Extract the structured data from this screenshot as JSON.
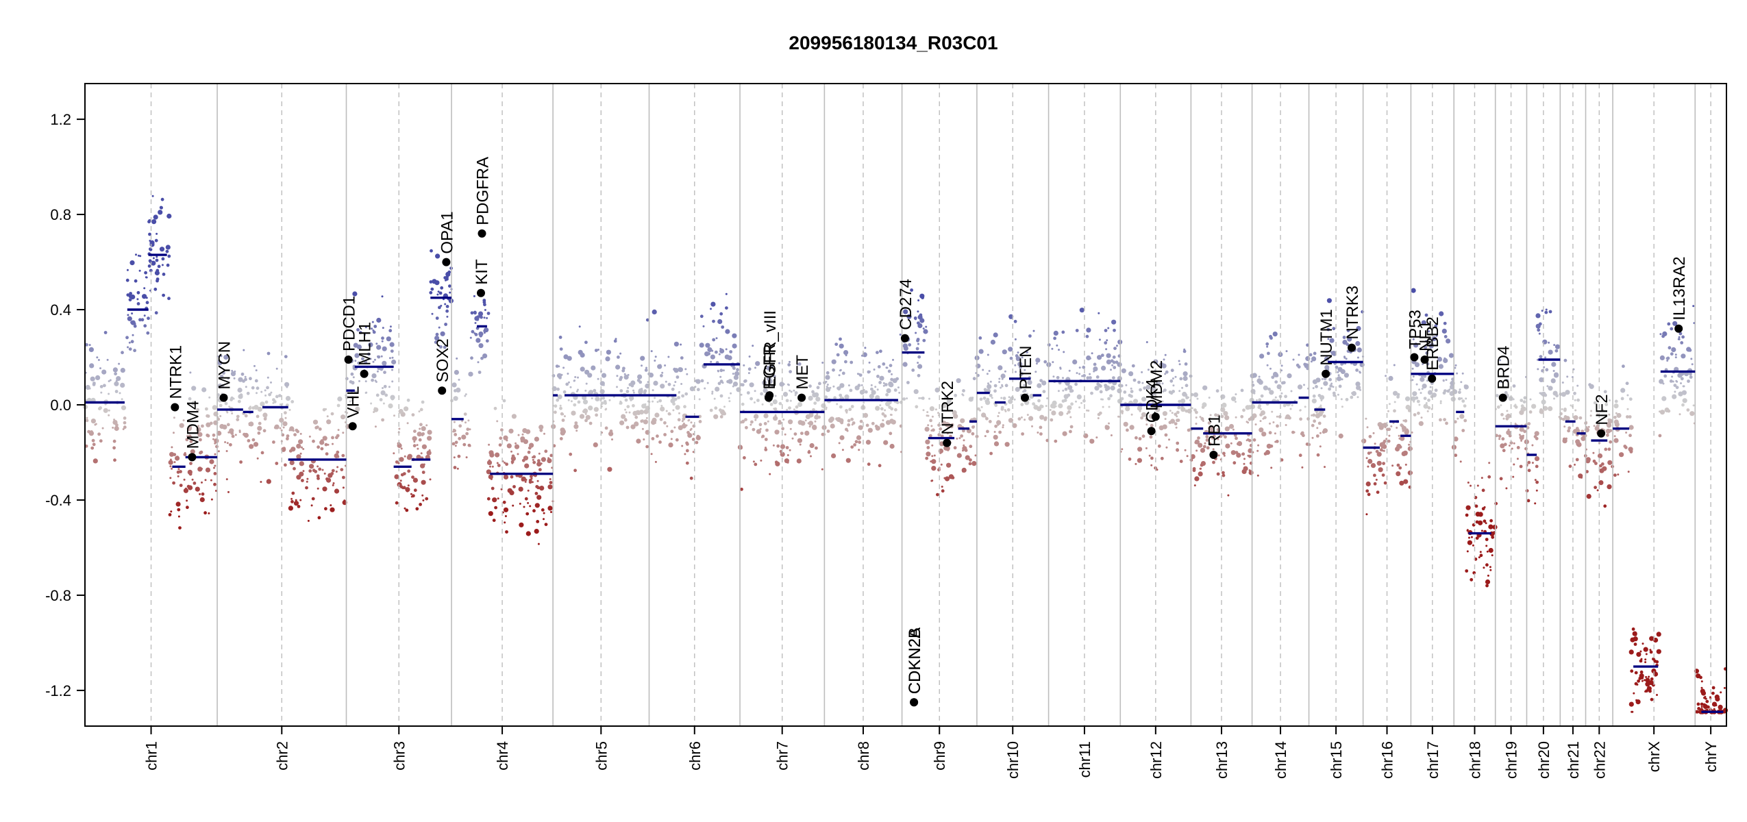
{
  "chart_data": {
    "type": "scatter",
    "title": "209956180134_R03C01",
    "xlabel": "",
    "ylabel": "",
    "ylim": [
      -1.35,
      1.35
    ],
    "y_ticks": [
      -1.2,
      -0.8,
      -0.4,
      0.0,
      0.4,
      0.8,
      1.2
    ],
    "y_tick_labels": [
      "-1.2",
      "-0.8",
      "-0.4",
      "0.0",
      "0.4",
      "0.8",
      "1.2"
    ],
    "colors": {
      "gain": "#4a4ea8",
      "loss": "#9b1b1b",
      "neutral": "#cfcfcf",
      "segment": "#000080",
      "gene_dot": "#000000",
      "grid": "#bdbdbd"
    },
    "chromosomes": [
      {
        "name": "chr1",
        "weight": 249
      },
      {
        "name": "chr2",
        "weight": 243
      },
      {
        "name": "chr3",
        "weight": 198
      },
      {
        "name": "chr4",
        "weight": 191
      },
      {
        "name": "chr5",
        "weight": 181
      },
      {
        "name": "chr6",
        "weight": 171
      },
      {
        "name": "chr7",
        "weight": 159
      },
      {
        "name": "chr8",
        "weight": 146
      },
      {
        "name": "chr9",
        "weight": 141
      },
      {
        "name": "chr10",
        "weight": 135
      },
      {
        "name": "chr11",
        "weight": 135
      },
      {
        "name": "chr12",
        "weight": 133
      },
      {
        "name": "chr13",
        "weight": 115
      },
      {
        "name": "chr14",
        "weight": 107
      },
      {
        "name": "chr15",
        "weight": 102
      },
      {
        "name": "chr16",
        "weight": 90
      },
      {
        "name": "chr17",
        "weight": 81
      },
      {
        "name": "chr18",
        "weight": 78
      },
      {
        "name": "chr19",
        "weight": 59
      },
      {
        "name": "chr20",
        "weight": 63
      },
      {
        "name": "chr21",
        "weight": 48
      },
      {
        "name": "chr22",
        "weight": 51
      },
      {
        "name": "chrX",
        "weight": 155
      },
      {
        "name": "chrY",
        "weight": 59
      }
    ],
    "segments": [
      {
        "chr": "chr1",
        "from": 0.0,
        "to": 0.3,
        "y": 0.01
      },
      {
        "chr": "chr1",
        "from": 0.32,
        "to": 0.48,
        "y": 0.4
      },
      {
        "chr": "chr1",
        "from": 0.48,
        "to": 0.62,
        "y": 0.63
      },
      {
        "chr": "chr1",
        "from": 0.66,
        "to": 0.76,
        "y": -0.26
      },
      {
        "chr": "chr1",
        "from": 0.76,
        "to": 1.0,
        "y": -0.22
      },
      {
        "chr": "chr2",
        "from": 0.0,
        "to": 0.2,
        "y": -0.02
      },
      {
        "chr": "chr2",
        "from": 0.2,
        "to": 0.28,
        "y": -0.03
      },
      {
        "chr": "chr2",
        "from": 0.35,
        "to": 0.55,
        "y": -0.01
      },
      {
        "chr": "chr2",
        "from": 0.55,
        "to": 1.0,
        "y": -0.23
      },
      {
        "chr": "chr3",
        "from": 0.0,
        "to": 0.08,
        "y": 0.06
      },
      {
        "chr": "chr3",
        "from": 0.08,
        "to": 0.45,
        "y": 0.16
      },
      {
        "chr": "chr3",
        "from": 0.45,
        "to": 0.62,
        "y": -0.26
      },
      {
        "chr": "chr3",
        "from": 0.62,
        "to": 0.8,
        "y": -0.23
      },
      {
        "chr": "chr3",
        "from": 0.8,
        "to": 1.0,
        "y": 0.45
      },
      {
        "chr": "chr4",
        "from": 0.0,
        "to": 0.12,
        "y": -0.06
      },
      {
        "chr": "chr4",
        "from": 0.25,
        "to": 0.35,
        "y": 0.33
      },
      {
        "chr": "chr4",
        "from": 0.38,
        "to": 1.0,
        "y": -0.29
      },
      {
        "chr": "chr5",
        "from": 0.0,
        "to": 0.05,
        "y": 0.04
      },
      {
        "chr": "chr5",
        "from": 0.12,
        "to": 1.0,
        "y": 0.04
      },
      {
        "chr": "chr6",
        "from": 0.0,
        "to": 0.3,
        "y": 0.04
      },
      {
        "chr": "chr6",
        "from": 0.4,
        "to": 0.55,
        "y": -0.05
      },
      {
        "chr": "chr6",
        "from": 0.6,
        "to": 1.0,
        "y": 0.17
      },
      {
        "chr": "chr7",
        "from": 0.0,
        "to": 1.0,
        "y": -0.03
      },
      {
        "chr": "chr8",
        "from": 0.0,
        "to": 0.95,
        "y": 0.02
      },
      {
        "chr": "chr9",
        "from": 0.0,
        "to": 0.3,
        "y": 0.22
      },
      {
        "chr": "chr9",
        "from": 0.35,
        "to": 0.7,
        "y": -0.14
      },
      {
        "chr": "chr9",
        "from": 0.75,
        "to": 0.9,
        "y": -0.1
      },
      {
        "chr": "chr9",
        "from": 0.9,
        "to": 1.0,
        "y": -0.07
      },
      {
        "chr": "chr10",
        "from": 0.0,
        "to": 0.18,
        "y": 0.05
      },
      {
        "chr": "chr10",
        "from": 0.25,
        "to": 0.4,
        "y": 0.01
      },
      {
        "chr": "chr10",
        "from": 0.45,
        "to": 0.75,
        "y": 0.11
      },
      {
        "chr": "chr10",
        "from": 0.78,
        "to": 0.9,
        "y": 0.04
      },
      {
        "chr": "chr11",
        "from": 0.0,
        "to": 1.0,
        "y": 0.1
      },
      {
        "chr": "chr12",
        "from": 0.0,
        "to": 1.0,
        "y": 0.0
      },
      {
        "chr": "chr13",
        "from": 0.0,
        "to": 0.2,
        "y": -0.1
      },
      {
        "chr": "chr13",
        "from": 0.2,
        "to": 1.0,
        "y": -0.12
      },
      {
        "chr": "chr14",
        "from": 0.0,
        "to": 0.8,
        "y": 0.01
      },
      {
        "chr": "chr14",
        "from": 0.82,
        "to": 1.0,
        "y": 0.03
      },
      {
        "chr": "chr15",
        "from": 0.1,
        "to": 0.3,
        "y": -0.02
      },
      {
        "chr": "chr15",
        "from": 0.35,
        "to": 1.0,
        "y": 0.18
      },
      {
        "chr": "chr16",
        "from": 0.0,
        "to": 0.35,
        "y": -0.18
      },
      {
        "chr": "chr16",
        "from": 0.55,
        "to": 0.75,
        "y": -0.07
      },
      {
        "chr": "chr16",
        "from": 0.78,
        "to": 1.0,
        "y": -0.13
      },
      {
        "chr": "chr17",
        "from": 0.0,
        "to": 1.0,
        "y": 0.13
      },
      {
        "chr": "chr18",
        "from": 0.05,
        "to": 0.25,
        "y": -0.03
      },
      {
        "chr": "chr18",
        "from": 0.35,
        "to": 0.9,
        "y": -0.54
      },
      {
        "chr": "chr19",
        "from": 0.0,
        "to": 1.0,
        "y": -0.09
      },
      {
        "chr": "chr20",
        "from": 0.0,
        "to": 0.3,
        "y": -0.21
      },
      {
        "chr": "chr20",
        "from": 0.35,
        "to": 1.0,
        "y": 0.19
      },
      {
        "chr": "chr21",
        "from": 0.2,
        "to": 0.6,
        "y": -0.07
      },
      {
        "chr": "chr21",
        "from": 0.65,
        "to": 1.0,
        "y": -0.12
      },
      {
        "chr": "chr22",
        "from": 0.2,
        "to": 0.8,
        "y": -0.15
      },
      {
        "chr": "chrX",
        "from": 0.0,
        "to": 0.2,
        "y": -0.1
      },
      {
        "chr": "chrX",
        "from": 0.25,
        "to": 0.55,
        "y": -1.1
      },
      {
        "chr": "chrX",
        "from": 0.58,
        "to": 1.0,
        "y": 0.14
      },
      {
        "chr": "chrY",
        "from": 0.2,
        "to": 0.9,
        "y": -1.29
      }
    ],
    "genes": [
      {
        "label": "NTRK1",
        "chr": "chr1",
        "pos": 0.68,
        "y": -0.01
      },
      {
        "label": "MDM4",
        "chr": "chr1",
        "pos": 0.81,
        "y": -0.22
      },
      {
        "label": "MYCN",
        "chr": "chr2",
        "pos": 0.05,
        "y": 0.03
      },
      {
        "label": "PDCD1",
        "chr": "chr3",
        "pos": 0.02,
        "y": 0.19
      },
      {
        "label": "VHL",
        "chr": "chr3",
        "pos": 0.06,
        "y": -0.09
      },
      {
        "label": "MLH1",
        "chr": "chr3",
        "pos": 0.17,
        "y": 0.13
      },
      {
        "label": "SOX2",
        "chr": "chr3",
        "pos": 0.91,
        "y": 0.06
      },
      {
        "label": "OPA1",
        "chr": "chr3",
        "pos": 0.95,
        "y": 0.6
      },
      {
        "label": "KIT",
        "chr": "chr4",
        "pos": 0.29,
        "y": 0.47
      },
      {
        "label": "PDGFRA",
        "chr": "chr4",
        "pos": 0.3,
        "y": 0.72
      },
      {
        "label": "EGFR",
        "chr": "chr7",
        "pos": 0.34,
        "y": 0.03
      },
      {
        "label": "EGFR_vIII",
        "chr": "chr7",
        "pos": 0.35,
        "y": 0.04
      },
      {
        "label": "MET",
        "chr": "chr7",
        "pos": 0.73,
        "y": 0.03
      },
      {
        "label": "CD274",
        "chr": "chr9",
        "pos": 0.04,
        "y": 0.28
      },
      {
        "label": "CDKN2A",
        "chr": "chr9",
        "pos": 0.16,
        "y": -1.25
      },
      {
        "label": "CDKN2B",
        "chr": "chr9",
        "pos": 0.16,
        "y": -1.25
      },
      {
        "label": "NTRK2",
        "chr": "chr9",
        "pos": 0.6,
        "y": -0.16
      },
      {
        "label": "PTEN",
        "chr": "chr10",
        "pos": 0.67,
        "y": 0.03
      },
      {
        "label": "CDK4",
        "chr": "chr12",
        "pos": 0.44,
        "y": -0.11
      },
      {
        "label": "MDM2",
        "chr": "chr12",
        "pos": 0.5,
        "y": -0.05
      },
      {
        "label": "RB1",
        "chr": "chr13",
        "pos": 0.37,
        "y": -0.21
      },
      {
        "label": "NUTM1",
        "chr": "chr15",
        "pos": 0.31,
        "y": 0.13
      },
      {
        "label": "NTRK3",
        "chr": "chr15",
        "pos": 0.79,
        "y": 0.24
      },
      {
        "label": "TP53",
        "chr": "chr17",
        "pos": 0.08,
        "y": 0.2
      },
      {
        "label": "NF1",
        "chr": "chr17",
        "pos": 0.32,
        "y": 0.19
      },
      {
        "label": "ERBB2",
        "chr": "chr17",
        "pos": 0.49,
        "y": 0.11
      },
      {
        "label": "BRD4",
        "chr": "chr19",
        "pos": 0.24,
        "y": 0.03
      },
      {
        "label": "NF2",
        "chr": "chr22",
        "pos": 0.57,
        "y": -0.12
      },
      {
        "label": "IL13RA2",
        "chr": "chrX",
        "pos": 0.8,
        "y": 0.32
      }
    ]
  }
}
